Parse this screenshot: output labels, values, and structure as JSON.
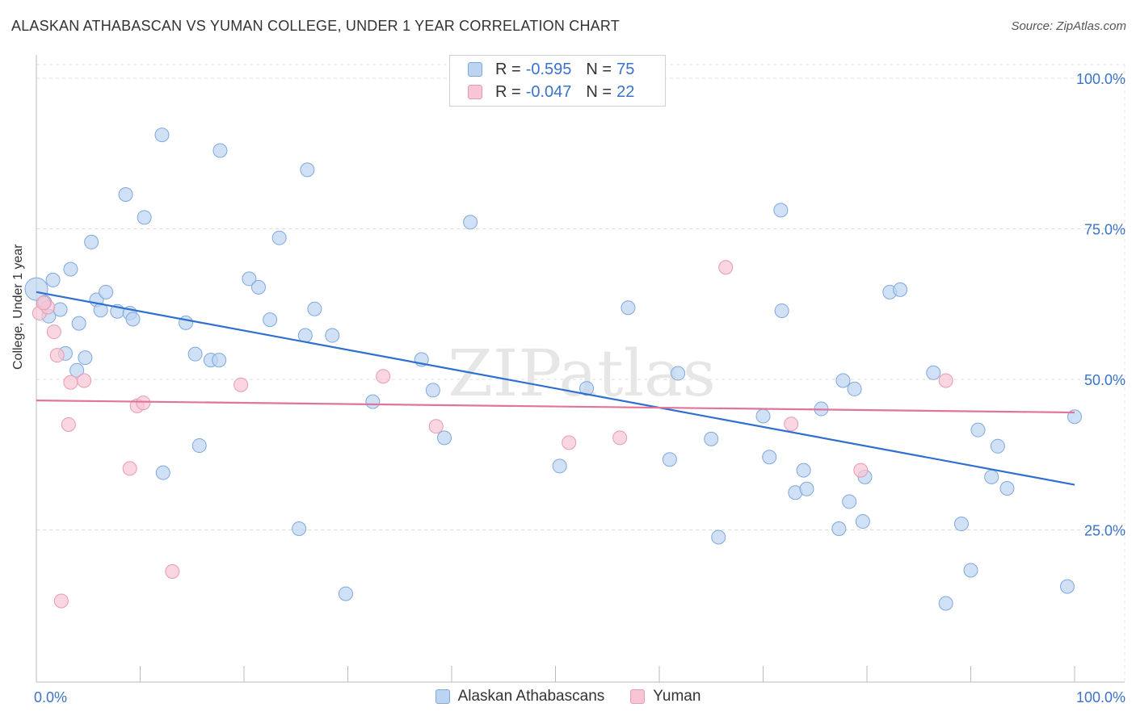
{
  "title": "ALASKAN ATHABASCAN VS YUMAN COLLEGE, UNDER 1 YEAR CORRELATION CHART",
  "source": "Source: ZipAtlas.com",
  "watermark": "ZIPatlas",
  "legend": {
    "series1": {
      "r_label": "R =",
      "r_value": "-0.595",
      "n_label": "N =",
      "n_value": "75"
    },
    "series2": {
      "r_label": "R =",
      "r_value": "-0.047",
      "n_label": "N =",
      "n_value": "22"
    }
  },
  "colors": {
    "blue_fill": "#bcd4f2",
    "blue_stroke": "#7fa8dd",
    "blue_line": "#2f6fcf",
    "pink_fill": "#f8c5d4",
    "pink_stroke": "#e89ab2",
    "pink_line": "#e0749a",
    "axis_text": "#3a73c7"
  },
  "chart_data": {
    "type": "scatter",
    "title": "ALASKAN ATHABASCAN VS YUMAN COLLEGE, UNDER 1 YEAR CORRELATION CHART",
    "xlabel": "",
    "ylabel": "College, Under 1 year",
    "xlim": [
      0,
      100
    ],
    "ylim": [
      0,
      100
    ],
    "x_tick_labels": [
      "0.0%",
      "100.0%"
    ],
    "y_tick_labels": [
      "25.0%",
      "50.0%",
      "75.0%",
      "100.0%"
    ],
    "grid": true,
    "legend_position": "top-center",
    "series": [
      {
        "name": "Alaskan Athabascans",
        "trend": {
          "x": [
            0,
            100
          ],
          "y": [
            64.5,
            32.5
          ]
        },
        "points": [
          [
            0.0,
            65.0
          ],
          [
            0.8,
            62.8
          ],
          [
            1.2,
            60.5
          ],
          [
            1.6,
            66.5
          ],
          [
            2.3,
            61.6
          ],
          [
            2.8,
            54.3
          ],
          [
            3.3,
            68.3
          ],
          [
            3.9,
            51.5
          ],
          [
            4.1,
            59.3
          ],
          [
            4.7,
            53.6
          ],
          [
            5.3,
            72.8
          ],
          [
            5.8,
            63.2
          ],
          [
            6.2,
            61.5
          ],
          [
            6.7,
            64.5
          ],
          [
            7.8,
            61.3
          ],
          [
            8.6,
            80.7
          ],
          [
            9.0,
            61.0
          ],
          [
            9.3,
            60.0
          ],
          [
            10.4,
            76.9
          ],
          [
            12.1,
            90.6
          ],
          [
            12.2,
            34.5
          ],
          [
            14.4,
            59.4
          ],
          [
            15.3,
            54.2
          ],
          [
            15.7,
            39.0
          ],
          [
            16.8,
            53.2
          ],
          [
            17.6,
            53.2
          ],
          [
            17.7,
            88.0
          ],
          [
            20.5,
            66.7
          ],
          [
            21.4,
            65.3
          ],
          [
            22.5,
            59.9
          ],
          [
            23.4,
            73.5
          ],
          [
            25.3,
            25.2
          ],
          [
            25.9,
            57.3
          ],
          [
            26.1,
            84.8
          ],
          [
            26.8,
            61.7
          ],
          [
            28.5,
            57.3
          ],
          [
            29.8,
            14.4
          ],
          [
            32.4,
            46.3
          ],
          [
            37.1,
            53.3
          ],
          [
            38.2,
            48.2
          ],
          [
            39.3,
            40.3
          ],
          [
            41.8,
            76.1
          ],
          [
            50.4,
            35.6
          ],
          [
            53.0,
            48.5
          ],
          [
            57.0,
            61.9
          ],
          [
            61.0,
            36.7
          ],
          [
            61.8,
            51.0
          ],
          [
            65.0,
            40.1
          ],
          [
            65.7,
            23.8
          ],
          [
            70.0,
            43.9
          ],
          [
            70.6,
            37.1
          ],
          [
            71.7,
            78.1
          ],
          [
            71.8,
            61.4
          ],
          [
            73.1,
            31.2
          ],
          [
            73.9,
            34.9
          ],
          [
            74.2,
            31.8
          ],
          [
            75.6,
            45.1
          ],
          [
            77.3,
            25.2
          ],
          [
            77.7,
            49.8
          ],
          [
            78.3,
            29.7
          ],
          [
            78.8,
            48.4
          ],
          [
            79.6,
            26.4
          ],
          [
            79.8,
            33.8
          ],
          [
            82.2,
            64.5
          ],
          [
            83.2,
            64.9
          ],
          [
            86.4,
            51.1
          ],
          [
            87.6,
            12.8
          ],
          [
            89.1,
            26.0
          ],
          [
            90.0,
            18.3
          ],
          [
            90.7,
            41.6
          ],
          [
            92.0,
            33.8
          ],
          [
            92.6,
            38.9
          ],
          [
            93.5,
            31.9
          ],
          [
            99.3,
            15.6
          ],
          [
            100.0,
            43.8
          ]
        ]
      },
      {
        "name": "Yuman",
        "trend": {
          "x": [
            0,
            100
          ],
          "y": [
            46.5,
            44.5
          ]
        },
        "points": [
          [
            0.3,
            61.0
          ],
          [
            1.1,
            62.0
          ],
          [
            1.7,
            57.9
          ],
          [
            2.0,
            54.0
          ],
          [
            2.4,
            13.2
          ],
          [
            3.1,
            42.5
          ],
          [
            3.3,
            49.5
          ],
          [
            4.6,
            49.8
          ],
          [
            9.0,
            35.2
          ],
          [
            9.7,
            45.6
          ],
          [
            10.3,
            46.1
          ],
          [
            13.1,
            18.1
          ],
          [
            19.7,
            49.1
          ],
          [
            33.4,
            50.5
          ],
          [
            38.5,
            42.2
          ],
          [
            51.3,
            39.5
          ],
          [
            56.2,
            40.3
          ],
          [
            66.4,
            68.6
          ],
          [
            72.7,
            42.6
          ],
          [
            79.4,
            34.9
          ],
          [
            87.6,
            49.8
          ],
          [
            0.7,
            62.7
          ]
        ]
      }
    ]
  }
}
